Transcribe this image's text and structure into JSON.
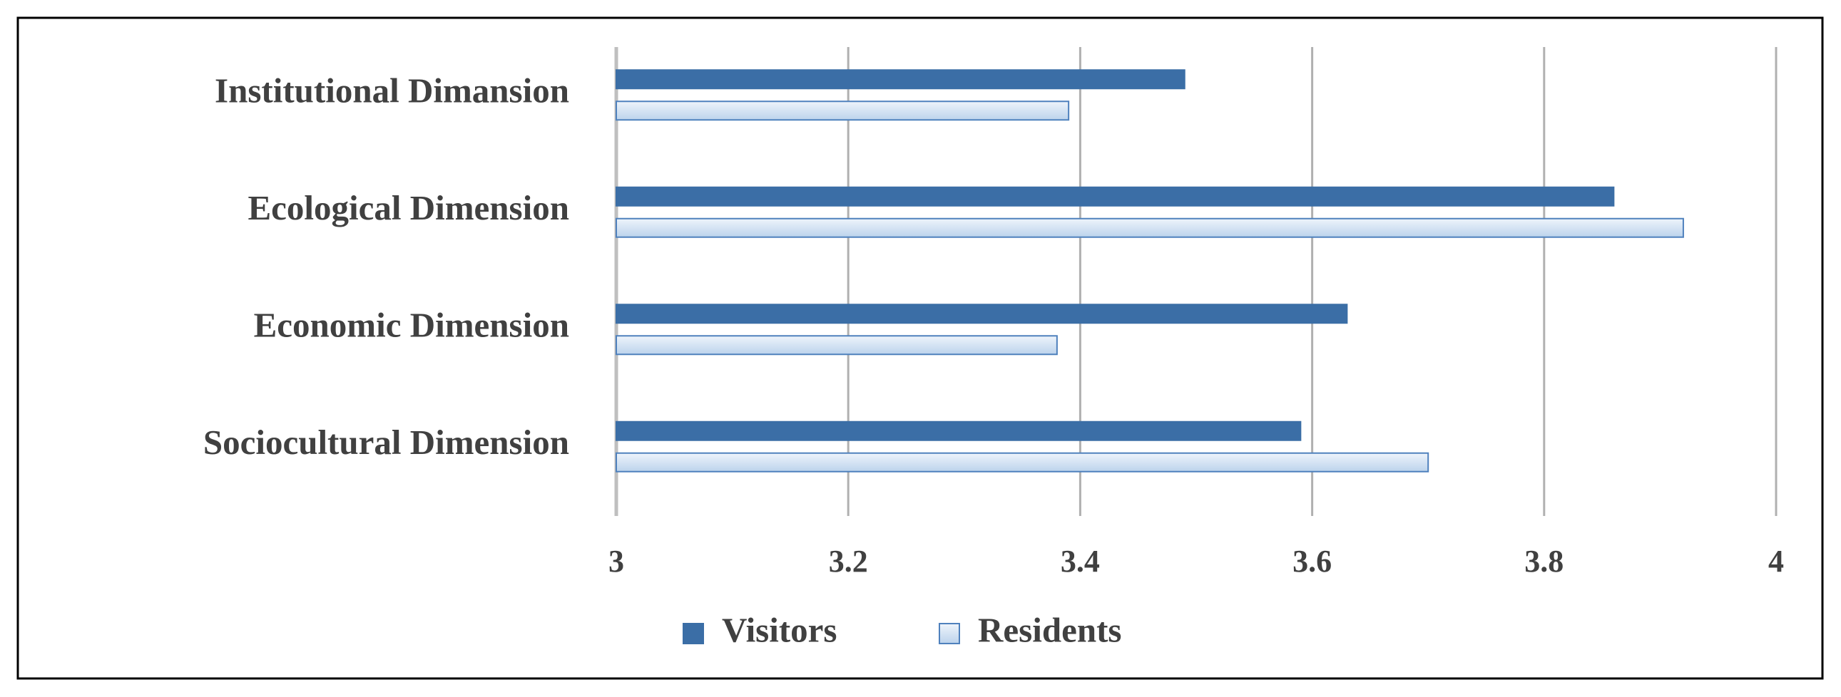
{
  "chart_data": {
    "type": "barh",
    "categories": [
      "Institutional Dimansion",
      "Ecological Dimension",
      "Economic Dimension",
      "Sociocultural Dimension"
    ],
    "series": [
      {
        "name": "Visitors",
        "color": "#3b6ea6",
        "values": [
          3.49,
          3.86,
          3.63,
          3.59
        ]
      },
      {
        "name": "Residents",
        "color": "#d6e4f3",
        "values": [
          3.39,
          3.92,
          3.38,
          3.7
        ]
      }
    ],
    "xlim": [
      3,
      4
    ],
    "xticks": [
      3,
      3.2,
      3.4,
      3.6,
      3.8,
      4
    ],
    "grid": true,
    "legend": "bottom"
  }
}
